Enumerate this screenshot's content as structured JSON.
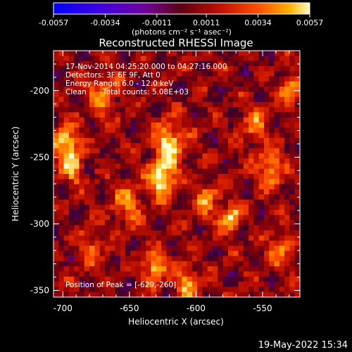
{
  "colorbar": {
    "ticks": [
      "-0.0057",
      "-0.0034",
      "-0.0011",
      "0.0011",
      "0.0034",
      "0.0057"
    ],
    "units": "(photons cm⁻² s⁻¹ asec⁻²)",
    "tick_values": [
      -0.0057,
      -0.0034,
      -0.0011,
      0.0011,
      0.0034,
      0.0057
    ]
  },
  "title": "Reconstructed RHESSI Image",
  "annotations": {
    "line1": "17-Nov-2014 04:25:20.000 to 04:27:16.000",
    "line2": "Detectors: 3F 6F 9F, Att 0",
    "line3": "Energy Range: 6.0 - 12.0 keV",
    "line4_left": "Clean",
    "line4_right": "Total counts: 5.08E+03",
    "peak": "Position of Peak = [-629,-260]"
  },
  "axes": {
    "xlabel": "Heliocentric X (arcsec)",
    "ylabel": "Heliocentric Y (arcsec)",
    "xticks": [
      "-700",
      "-650",
      "-600",
      "-550"
    ],
    "yticks": [
      "-200",
      "-250",
      "-300",
      "-350"
    ],
    "xlim": [
      -707,
      -522
    ],
    "ylim": [
      -355,
      -170
    ],
    "xtick_values": [
      -700,
      -650,
      -600,
      -550
    ],
    "ytick_values": [
      -200,
      -250,
      -300,
      -350
    ]
  },
  "footer": {
    "date": "19-May-2022 15:34"
  }
}
